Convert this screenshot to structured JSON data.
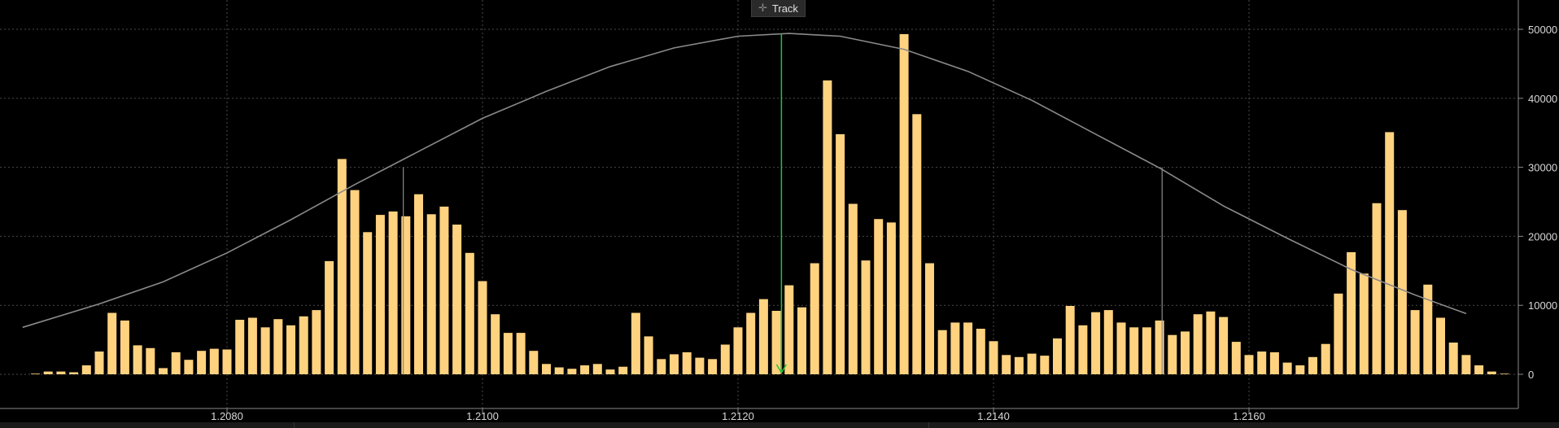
{
  "toolbar": {
    "track_label": "Track",
    "track_icon": "crosshair-icon"
  },
  "chart_data": {
    "type": "bar",
    "title": "",
    "xlabel": "",
    "ylabel": "",
    "x_ticks": [
      "1.2080",
      "1.2100",
      "1.2120",
      "1.2140",
      "1.2160"
    ],
    "x_tick_values": [
      1.208,
      1.21,
      1.212,
      1.214,
      1.216
    ],
    "y_ticks": [
      "0",
      "10000",
      "20000",
      "30000",
      "40000",
      "50000"
    ],
    "y_tick_values": [
      0,
      10000,
      20000,
      30000,
      40000,
      50000
    ],
    "xlim": [
      1.20638,
      1.21778
    ],
    "ylim": [
      0,
      50000
    ],
    "grid": true,
    "bar_step": 0.0001,
    "x_start": 1.2065,
    "values": [
      100,
      400,
      400,
      300,
      1300,
      3300,
      8900,
      7800,
      4200,
      3800,
      900,
      3200,
      2100,
      3400,
      3700,
      3600,
      7900,
      8200,
      6800,
      8000,
      7100,
      8400,
      9300,
      16400,
      31200,
      26700,
      20600,
      23100,
      23600,
      22900,
      26100,
      23200,
      24300,
      21700,
      17600,
      13500,
      8700,
      6000,
      6000,
      3400,
      1500,
      1000,
      800,
      1300,
      1500,
      700,
      1100,
      8900,
      5500,
      2200,
      2900,
      3200,
      2400,
      2200,
      4300,
      6800,
      8900,
      10900,
      9200,
      12900,
      9700,
      16100,
      42600,
      34800,
      24700,
      16500,
      22500,
      22000,
      49300,
      37700,
      16100,
      6400,
      7500,
      7500,
      6600,
      4800,
      2800,
      2500,
      3000,
      2700,
      5200,
      9900,
      7100,
      9000,
      9300,
      7500,
      6800,
      6800,
      7800,
      5700,
      6200,
      8700,
      9100,
      8300,
      4700,
      2800,
      3300,
      3200,
      1700,
      1300,
      2500,
      4400,
      11700,
      17700,
      14600,
      24800,
      35100,
      23800,
      9300,
      13000,
      8200,
      4600,
      2800,
      1300,
      400,
      100
    ],
    "series": [
      {
        "type": "line",
        "x": [
          1.2064,
          1.207,
          1.2075,
          1.208,
          1.2085,
          1.209,
          1.2095,
          1.21,
          1.2105,
          1.211,
          1.2115,
          1.212,
          1.2124,
          1.2128,
          1.2133,
          1.2138,
          1.2143,
          1.2148,
          1.2153,
          1.2158,
          1.2163,
          1.2168,
          1.2173,
          1.2177
        ],
        "y": [
          6800,
          10200,
          13400,
          17600,
          22400,
          27500,
          32300,
          37100,
          41000,
          44600,
          47300,
          49000,
          49400,
          49000,
          47100,
          43900,
          39700,
          34800,
          29900,
          24400,
          19700,
          15200,
          11500,
          8800
        ]
      }
    ],
    "reference_lines": {
      "current_x": 1.21234,
      "band_low": {
        "x": 1.20938,
        "y": 30000
      },
      "band_high": {
        "x": 1.21532,
        "y": 30000
      }
    },
    "colors": {
      "bar": "#ffd27f",
      "curve": "#8a8a8a",
      "current_line": "#22c33a",
      "grid": "#4a4a4a",
      "band_line": "#8a8a8a"
    }
  }
}
